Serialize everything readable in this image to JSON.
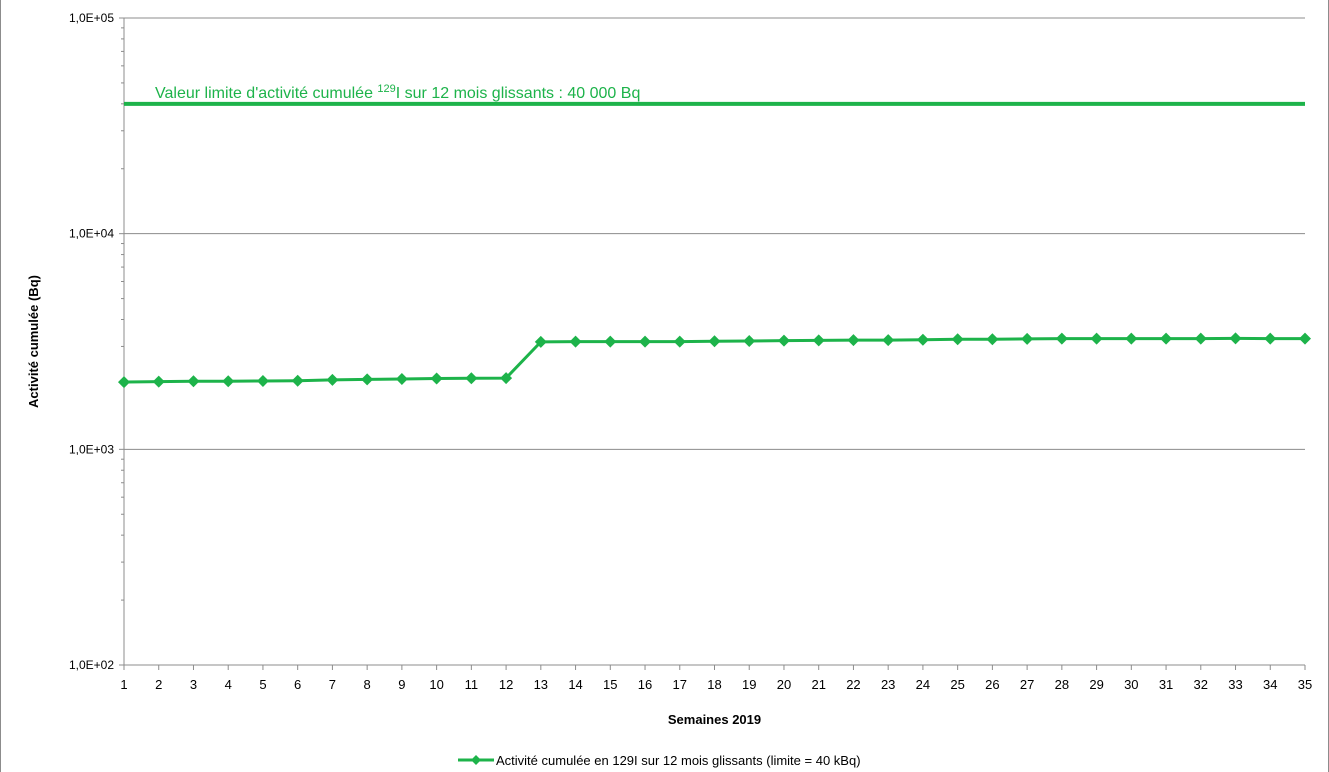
{
  "chart_data": {
    "type": "line",
    "title": "",
    "xlabel": "Semaines 2019",
    "ylabel": "Activité cumulée (Bq)",
    "y_scale": "log",
    "ylim": [
      100,
      100000
    ],
    "y_tick_values": [
      100,
      1000,
      10000,
      100000
    ],
    "y_tick_labels": [
      "1,0E+02",
      "1,0E+03",
      "1,0E+04",
      "1,0E+05"
    ],
    "grid": "horizontal",
    "legend_position": "bottom",
    "series_color": "#1db34a",
    "x": [
      1,
      2,
      3,
      4,
      5,
      6,
      7,
      8,
      9,
      10,
      11,
      12,
      13,
      14,
      15,
      16,
      17,
      18,
      19,
      20,
      21,
      22,
      23,
      24,
      25,
      26,
      27,
      28,
      29,
      30,
      31,
      32,
      33,
      34,
      35
    ],
    "series": [
      {
        "name": "Activité cumulée en 129I sur 12 mois glissants (limite = 40 kBq)",
        "values": [
          2050,
          2060,
          2070,
          2070,
          2075,
          2080,
          2100,
          2110,
          2120,
          2130,
          2135,
          2140,
          3150,
          3160,
          3160,
          3160,
          3160,
          3170,
          3180,
          3190,
          3200,
          3210,
          3210,
          3220,
          3240,
          3240,
          3250,
          3260,
          3260,
          3260,
          3260,
          3260,
          3270,
          3260,
          3260
        ]
      }
    ],
    "reference_line": {
      "value": 40000,
      "label_prefix": "Valeur limite d'activité cumulée ",
      "label_sup": "129",
      "label_suffix": "I sur 12 mois  glissants : 40 000 Bq"
    }
  }
}
